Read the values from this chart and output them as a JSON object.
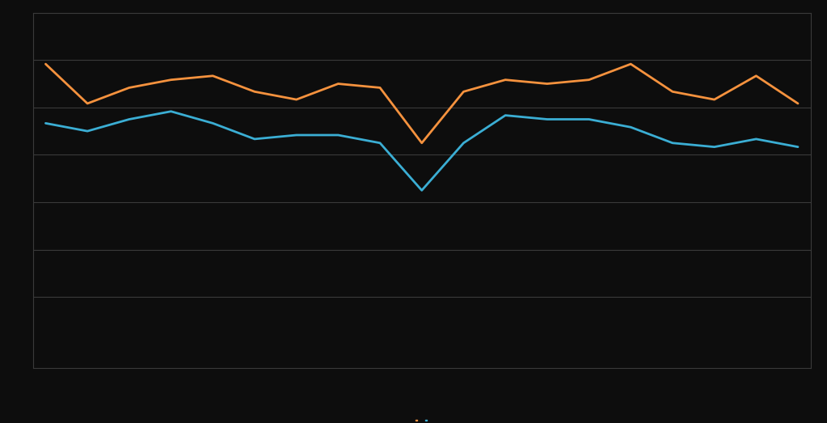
{
  "orange_values": [
    57,
    47,
    51,
    53,
    54,
    50,
    48,
    52,
    51,
    37,
    50,
    53,
    52,
    53,
    57,
    50,
    48,
    54,
    47
  ],
  "blue_values": [
    42,
    40,
    43,
    45,
    42,
    38,
    39,
    39,
    37,
    25,
    37,
    44,
    43,
    43,
    41,
    37,
    36,
    38,
    36
  ],
  "orange_color": "#F5923E",
  "blue_color": "#3BAED4",
  "background_color": "#0d0d0d",
  "grid_color": "#3a3a3a",
  "ylim": [
    -20,
    70
  ],
  "ytick_positions": [
    70,
    58,
    46,
    34,
    22,
    10,
    -2
  ],
  "legend_orange_label": "",
  "legend_blue_label": ""
}
